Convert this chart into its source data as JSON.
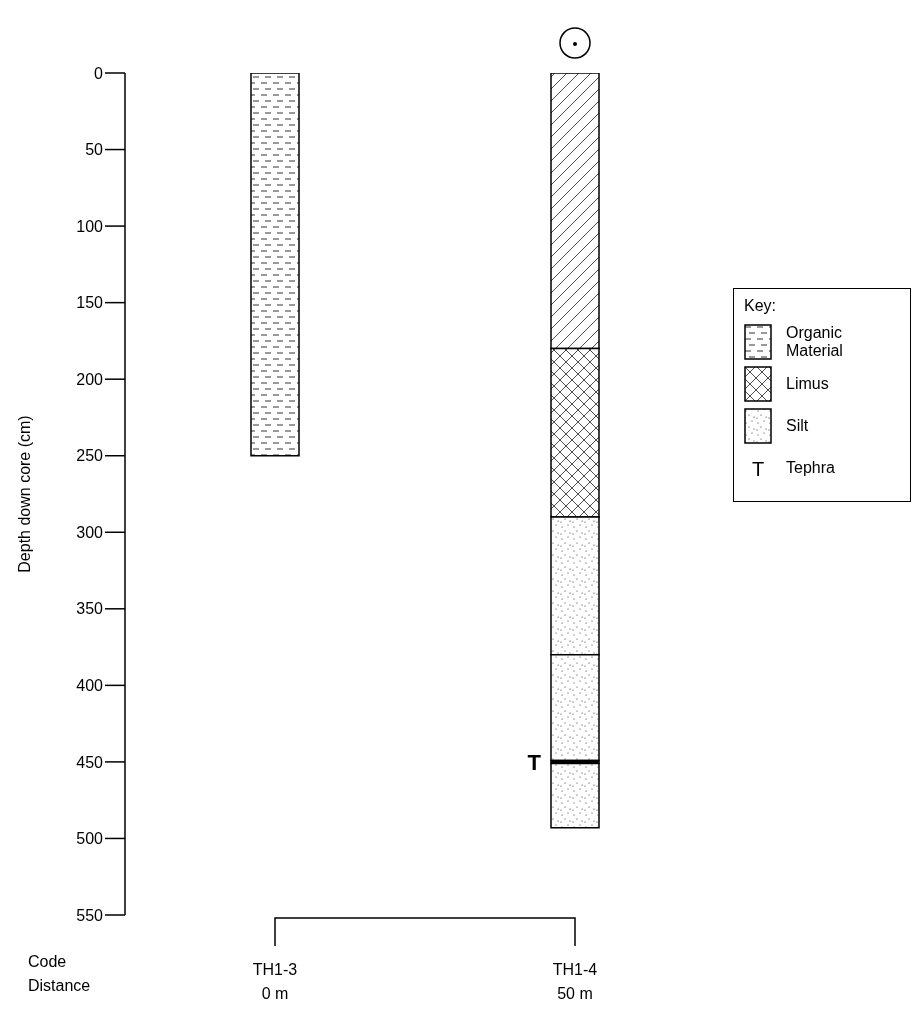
{
  "chart_data": {
    "type": "bar",
    "stacked": true,
    "ylabel": "Depth down core (cm)",
    "legend_title": "Key:",
    "legend": "right",
    "grid": false,
    "categories": [
      "TH1-3\n0 m",
      "TH1-4\n50 m"
    ],
    "ylim": [
      550,
      0
    ],
    "yticks": [
      0,
      50,
      100,
      150,
      200,
      250,
      300,
      350,
      400,
      450,
      500,
      550
    ],
    "series": [
      {
        "name": "Organic Material",
        "color": "#000000",
        "values": [
          250,
          null
        ]
      },
      {
        "color": "#000000",
        "values": [
          null,
          180
        ]
      },
      {
        "name": "Limus",
        "color": "#000000",
        "values": [
          null,
          110
        ]
      },
      {
        "name": "Silt",
        "color": "#000000",
        "values": [
          null,
          90
        ]
      },
      {
        "color": "#000000",
        "values": [
          null,
          69
        ]
      },
      {
        "name": "Tephra",
        "color": "#000000",
        "values": [
          null,
          2
        ]
      },
      {
        "color": "#000000",
        "values": [
          null,
          42
        ]
      }
    ],
    "annotations": [
      {
        "text": "T",
        "x": "TH1-4\n50 m",
        "y": 450
      },
      "Code",
      "Distance"
    ]
  }
}
